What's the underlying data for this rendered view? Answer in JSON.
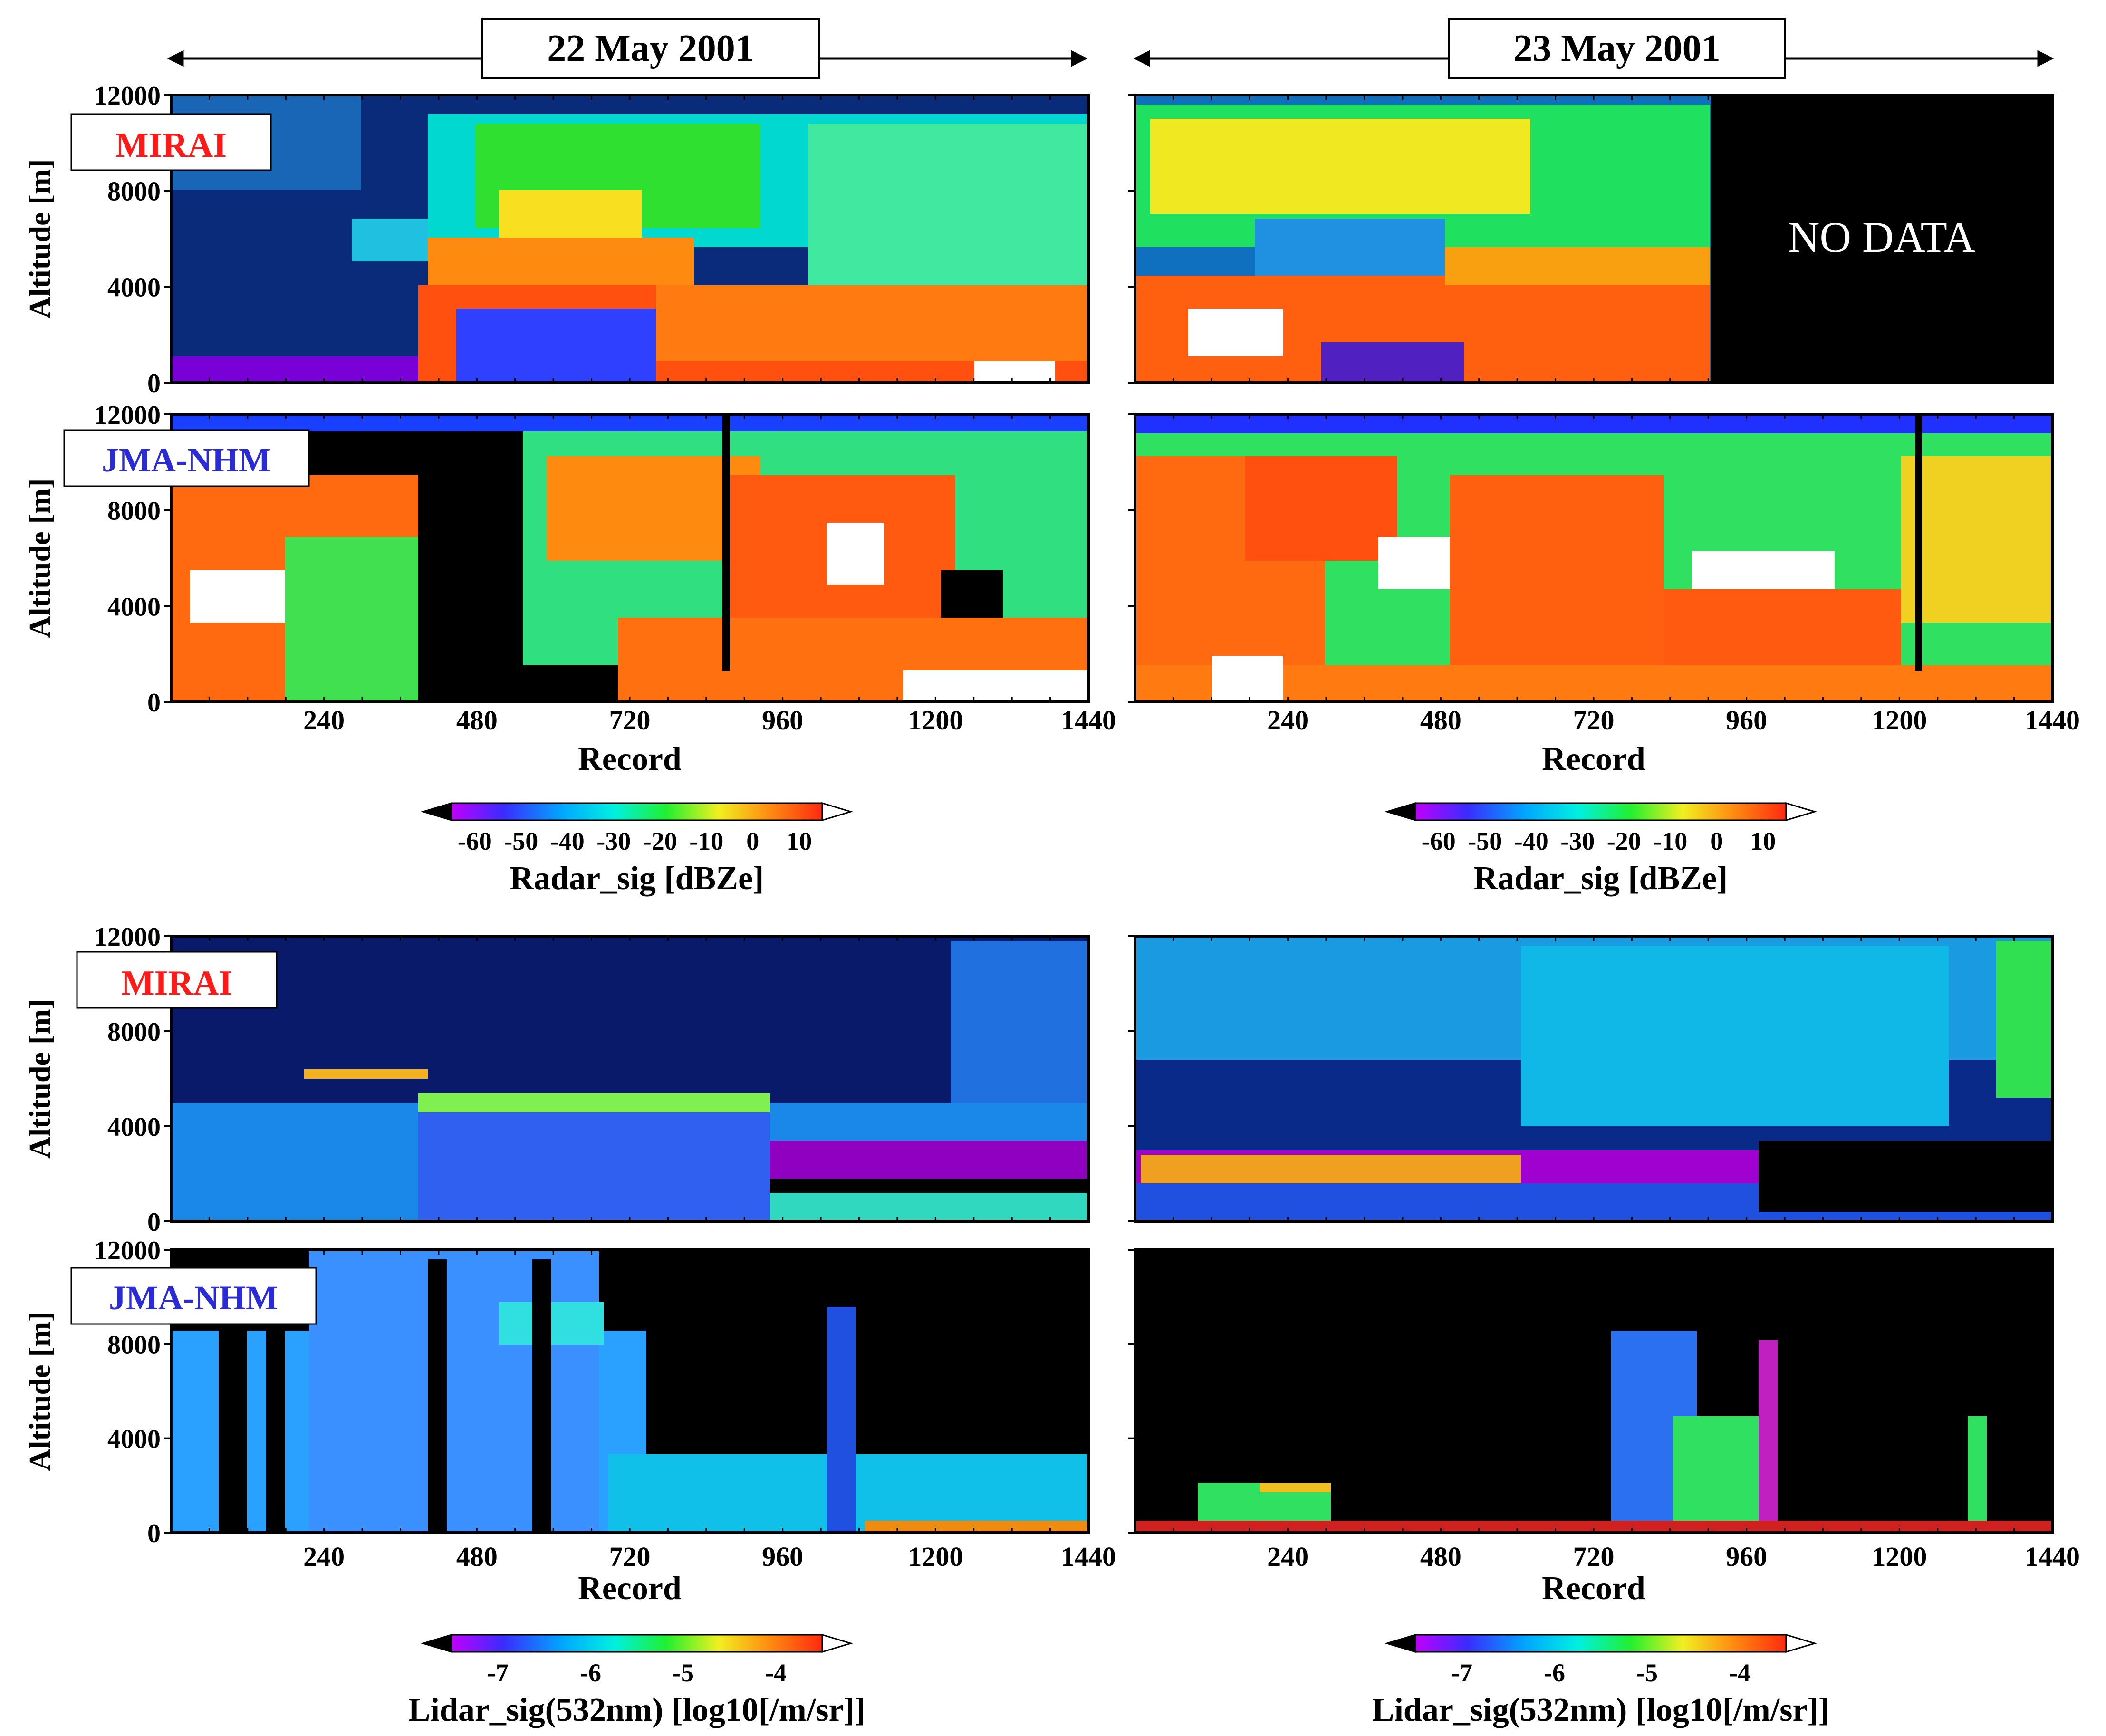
{
  "colors": {
    "mirai_label": "#ff1a1a",
    "jma_label": "#2a2ad6",
    "no_data_bg": "#000000",
    "no_data_text": "#ffffff",
    "frame": "#000000"
  },
  "dates": {
    "left": "22 May 2001",
    "right": "23 May 2001"
  },
  "source_labels": {
    "mirai": "MIRAI",
    "jma": "JMA-NHM"
  },
  "no_data": "NO DATA",
  "panel_colormap": "rainbow (purple-blue-cyan-green-yellow-orange-red-white), black = no signal",
  "chart_data": [
    {
      "type": "heatmap",
      "section": "radar",
      "panels": [
        {
          "row": "mirai",
          "date": "22 May 2001"
        },
        {
          "row": "mirai",
          "date": "23 May 2001",
          "no_data_from_record": 905
        },
        {
          "row": "jma",
          "date": "22 May 2001"
        },
        {
          "row": "jma",
          "date": "23 May 2001"
        }
      ],
      "ylabel": "Altitude [m]",
      "xlabel": "Record",
      "xlim": [
        0,
        1440
      ],
      "ylim": [
        0,
        12000
      ],
      "x_tick_labels": [
        "240",
        "480",
        "720",
        "960",
        "1200",
        "1440"
      ],
      "y_tick_labels": [
        "0",
        "4000",
        "8000",
        "12000"
      ],
      "colorbar": {
        "label": "Radar_sig [dBZe]",
        "range": [
          -65,
          15
        ],
        "tick_labels": [
          "-60",
          "-50",
          "-40",
          "-30",
          "-20",
          "-10",
          "0",
          "10"
        ]
      }
    },
    {
      "type": "heatmap",
      "section": "lidar",
      "panels": [
        {
          "row": "mirai",
          "date": "22 May 2001"
        },
        {
          "row": "mirai",
          "date": "23 May 2001"
        },
        {
          "row": "jma",
          "date": "22 May 2001"
        },
        {
          "row": "jma",
          "date": "23 May 2001"
        }
      ],
      "ylabel": "Altitude [m]",
      "xlabel": "Record",
      "xlim": [
        0,
        1440
      ],
      "ylim": [
        0,
        12000
      ],
      "x_tick_labels": [
        "240",
        "480",
        "720",
        "960",
        "1200",
        "1440"
      ],
      "y_tick_labels": [
        "0",
        "4000",
        "8000",
        "12000"
      ],
      "colorbar": {
        "label": "Lidar_sig(532nm) [log10[/m/sr]]",
        "range": [
          -7.5,
          -3.5
        ],
        "tick_labels": [
          "-7",
          "-6",
          "-5",
          "-4"
        ]
      }
    }
  ]
}
